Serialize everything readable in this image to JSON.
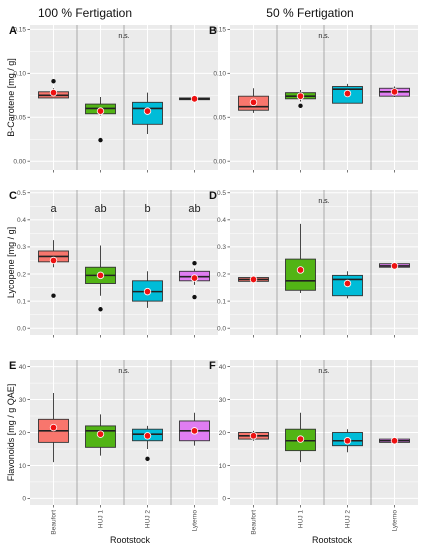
{
  "figure": {
    "column_titles": [
      "100 % Fertigation",
      "50 % Fertigation"
    ],
    "x_axis_title": "Rootstock",
    "colors": {
      "Beaufort": "#f8766d",
      "HUJ 1": "#52b415",
      "HUJ 2": "#00bcd8",
      "Lyterno": "#e07df2",
      "mean_dot": "#ee1111",
      "panel_bg": "#ebebeb",
      "grid": "#ffffff",
      "separator": "#9a9a9a"
    }
  },
  "chart_data": [
    {
      "type": "box",
      "panel": "A",
      "row": 0,
      "col": 0,
      "ylabel": "B-Carotene [mg / g]",
      "ylim": [
        -0.01,
        0.155
      ],
      "yticks": [
        0.0,
        0.05,
        0.1,
        0.15
      ],
      "tick_labels": [
        "0.00",
        "0.05",
        "0.10",
        "0.15"
      ],
      "decimals": 2,
      "significance": "n.s.",
      "letters": [],
      "categories": [
        "Beaufort",
        "HUJ 1",
        "HUJ 2",
        "Lyterno"
      ],
      "boxes": [
        {
          "q1": 0.072,
          "median": 0.075,
          "q3": 0.079,
          "whisker_low": 0.072,
          "whisker_high": 0.083,
          "mean": 0.078,
          "outliers": [
            0.091
          ]
        },
        {
          "q1": 0.054,
          "median": 0.06,
          "q3": 0.065,
          "whisker_low": 0.052,
          "whisker_high": 0.073,
          "mean": 0.057,
          "outliers": [
            0.024
          ]
        },
        {
          "q1": 0.042,
          "median": 0.06,
          "q3": 0.067,
          "whisker_low": 0.031,
          "whisker_high": 0.078,
          "mean": 0.057,
          "outliers": []
        },
        {
          "q1": 0.07,
          "median": 0.071,
          "q3": 0.072,
          "whisker_low": 0.07,
          "whisker_high": 0.072,
          "mean": 0.071,
          "outliers": []
        }
      ]
    },
    {
      "type": "box",
      "panel": "B",
      "row": 0,
      "col": 1,
      "ylabel": "",
      "ylim": [
        -0.01,
        0.155
      ],
      "yticks": [
        0.0,
        0.05,
        0.1,
        0.15
      ],
      "tick_labels": [
        "0.00",
        "0.05",
        "0.10",
        "0.15"
      ],
      "decimals": 2,
      "significance": "n.s.",
      "letters": [],
      "categories": [
        "Beaufort",
        "HUJ 1",
        "HUJ 2",
        "Lyterno"
      ],
      "boxes": [
        {
          "q1": 0.058,
          "median": 0.062,
          "q3": 0.074,
          "whisker_low": 0.055,
          "whisker_high": 0.083,
          "mean": 0.067,
          "outliers": []
        },
        {
          "q1": 0.071,
          "median": 0.074,
          "q3": 0.078,
          "whisker_low": 0.068,
          "whisker_high": 0.081,
          "mean": 0.074,
          "outliers": [
            0.063
          ]
        },
        {
          "q1": 0.066,
          "median": 0.082,
          "q3": 0.085,
          "whisker_low": 0.066,
          "whisker_high": 0.088,
          "mean": 0.077,
          "outliers": []
        },
        {
          "q1": 0.074,
          "median": 0.079,
          "q3": 0.083,
          "whisker_low": 0.073,
          "whisker_high": 0.085,
          "mean": 0.079,
          "outliers": []
        }
      ]
    },
    {
      "type": "box",
      "panel": "C",
      "row": 1,
      "col": 0,
      "ylabel": "Lycopene [mg / g]",
      "ylim": [
        -0.025,
        0.51
      ],
      "yticks": [
        0.0,
        0.1,
        0.2,
        0.3,
        0.4,
        0.5
      ],
      "tick_labels": [
        "0.0",
        "0.1",
        "0.2",
        "0.3",
        "0.4",
        "0.5"
      ],
      "decimals": 1,
      "significance": "",
      "letters": [
        "a",
        "ab",
        "b",
        "ab"
      ],
      "categories": [
        "Beaufort",
        "HUJ 1",
        "HUJ 2",
        "Lyterno"
      ],
      "boxes": [
        {
          "q1": 0.245,
          "median": 0.265,
          "q3": 0.285,
          "whisker_low": 0.225,
          "whisker_high": 0.325,
          "mean": 0.25,
          "outliers": [
            0.12
          ]
        },
        {
          "q1": 0.165,
          "median": 0.195,
          "q3": 0.225,
          "whisker_low": 0.12,
          "whisker_high": 0.305,
          "mean": 0.195,
          "outliers": [
            0.07
          ]
        },
        {
          "q1": 0.1,
          "median": 0.135,
          "q3": 0.175,
          "whisker_low": 0.075,
          "whisker_high": 0.21,
          "mean": 0.135,
          "outliers": []
        },
        {
          "q1": 0.175,
          "median": 0.19,
          "q3": 0.21,
          "whisker_low": 0.16,
          "whisker_high": 0.22,
          "mean": 0.185,
          "outliers": [
            0.24,
            0.115
          ]
        }
      ]
    },
    {
      "type": "box",
      "panel": "D",
      "row": 1,
      "col": 1,
      "ylabel": "",
      "ylim": [
        -0.025,
        0.51
      ],
      "yticks": [
        0.0,
        0.1,
        0.2,
        0.3,
        0.4,
        0.5
      ],
      "tick_labels": [
        "0.0",
        "0.1",
        "0.2",
        "0.3",
        "0.4",
        "0.5"
      ],
      "decimals": 1,
      "significance": "n.s.",
      "letters": [],
      "categories": [
        "Beaufort",
        "HUJ 1",
        "HUJ 2",
        "Lyterno"
      ],
      "boxes": [
        {
          "q1": 0.173,
          "median": 0.18,
          "q3": 0.187,
          "whisker_low": 0.17,
          "whisker_high": 0.19,
          "mean": 0.18,
          "outliers": []
        },
        {
          "q1": 0.14,
          "median": 0.175,
          "q3": 0.255,
          "whisker_low": 0.13,
          "whisker_high": 0.385,
          "mean": 0.215,
          "outliers": []
        },
        {
          "q1": 0.12,
          "median": 0.18,
          "q3": 0.195,
          "whisker_low": 0.11,
          "whisker_high": 0.21,
          "mean": 0.165,
          "outliers": []
        },
        {
          "q1": 0.225,
          "median": 0.23,
          "q3": 0.238,
          "whisker_low": 0.22,
          "whisker_high": 0.24,
          "mean": 0.23,
          "outliers": []
        }
      ]
    },
    {
      "type": "box",
      "panel": "E",
      "row": 2,
      "col": 0,
      "ylabel": "Flavonoids [mg / g QAE]",
      "ylim": [
        -2,
        42
      ],
      "yticks": [
        0,
        10,
        20,
        30,
        40
      ],
      "tick_labels": [
        "0",
        "10",
        "20",
        "30",
        "40"
      ],
      "decimals": 0,
      "significance": "n.s.",
      "letters": [],
      "categories": [
        "Beaufort",
        "HUJ 1",
        "HUJ 2",
        "Lyterno"
      ],
      "boxes": [
        {
          "q1": 17.0,
          "median": 20.5,
          "q3": 24.0,
          "whisker_low": 11.0,
          "whisker_high": 32.0,
          "mean": 21.5,
          "outliers": []
        },
        {
          "q1": 15.5,
          "median": 20.5,
          "q3": 22.0,
          "whisker_low": 13.0,
          "whisker_high": 25.5,
          "mean": 19.5,
          "outliers": []
        },
        {
          "q1": 17.5,
          "median": 19.5,
          "q3": 21.0,
          "whisker_low": 15.0,
          "whisker_high": 22.0,
          "mean": 19.0,
          "outliers": [
            12.0
          ]
        },
        {
          "q1": 17.5,
          "median": 20.5,
          "q3": 23.5,
          "whisker_low": 16.0,
          "whisker_high": 26.0,
          "mean": 20.5,
          "outliers": []
        }
      ]
    },
    {
      "type": "box",
      "panel": "F",
      "row": 2,
      "col": 1,
      "ylabel": "",
      "ylim": [
        -2,
        42
      ],
      "yticks": [
        0,
        10,
        20,
        30,
        40
      ],
      "tick_labels": [
        "0",
        "10",
        "20",
        "30",
        "40"
      ],
      "decimals": 0,
      "significance": "n.s.",
      "letters": [],
      "categories": [
        "Beaufort",
        "HUJ 1",
        "HUJ 2",
        "Lyterno"
      ],
      "boxes": [
        {
          "q1": 18.0,
          "median": 19.0,
          "q3": 20.0,
          "whisker_low": 17.5,
          "whisker_high": 20.5,
          "mean": 19.0,
          "outliers": []
        },
        {
          "q1": 14.5,
          "median": 17.5,
          "q3": 21.0,
          "whisker_low": 11.0,
          "whisker_high": 26.0,
          "mean": 18.0,
          "outliers": []
        },
        {
          "q1": 16.0,
          "median": 17.5,
          "q3": 20.0,
          "whisker_low": 14.0,
          "whisker_high": 21.0,
          "mean": 17.5,
          "outliers": []
        },
        {
          "q1": 17.0,
          "median": 17.5,
          "q3": 18.0,
          "whisker_low": 17.0,
          "whisker_high": 18.0,
          "mean": 17.5,
          "outliers": []
        }
      ]
    }
  ]
}
